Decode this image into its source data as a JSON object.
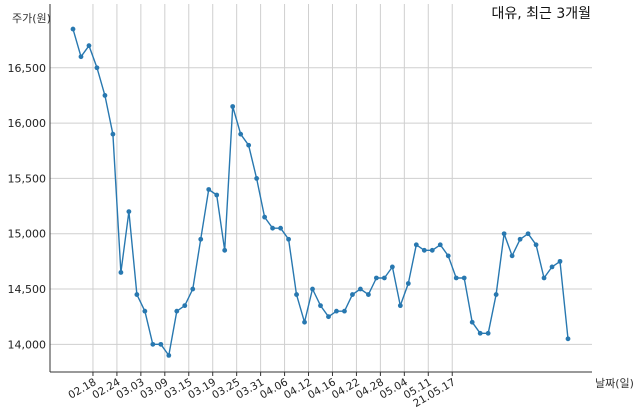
{
  "chart_data": {
    "type": "line",
    "title": "대유, 최근 3개월",
    "ylabel": "주가(원)",
    "xlabel": "날짜(일)",
    "ylim": [
      13750,
      16950
    ],
    "yticks": [
      14000,
      14500,
      15000,
      15500,
      16000,
      16500
    ],
    "ytick_labels": [
      "14,000",
      "14,500",
      "15,000",
      "15,500",
      "16,000",
      "16,500"
    ],
    "xtick_labels": [
      "02.18",
      "02.24",
      "03.03",
      "03.09",
      "03.15",
      "03.19",
      "03.25",
      "03.31",
      "04.06",
      "04.12",
      "04.16",
      "04.22",
      "04.28",
      "05.04",
      "05.11",
      "21.05.17"
    ],
    "xtick_indices": [
      2.5,
      5.5,
      8.5,
      11.5,
      14.5,
      17.5,
      20.5,
      23.5,
      26.5,
      29.5,
      32.5,
      35.5,
      38.5,
      41.5,
      44.5,
      47.5
    ],
    "grid": true,
    "color": "#2878b0",
    "series": [
      {
        "values": [
          16850,
          16600,
          16700,
          16500,
          16250,
          15900,
          14650,
          15200,
          14450,
          14300,
          14000,
          14000,
          13900,
          14300,
          14350,
          14500,
          14950,
          15400,
          15350,
          14850,
          16150,
          15900,
          15800,
          15500,
          15150,
          15050,
          15050,
          14950,
          14450,
          14200,
          14500,
          14350,
          14250,
          14300,
          14300,
          14450,
          14500,
          14450,
          14600,
          14600,
          14700,
          14350,
          14550,
          14900,
          14850,
          14850,
          14900,
          14800,
          14600,
          14600,
          14200,
          14100,
          14100,
          14450,
          15000,
          14800,
          14950,
          15000,
          14900,
          14600,
          14700,
          14750,
          14050
        ]
      }
    ]
  }
}
